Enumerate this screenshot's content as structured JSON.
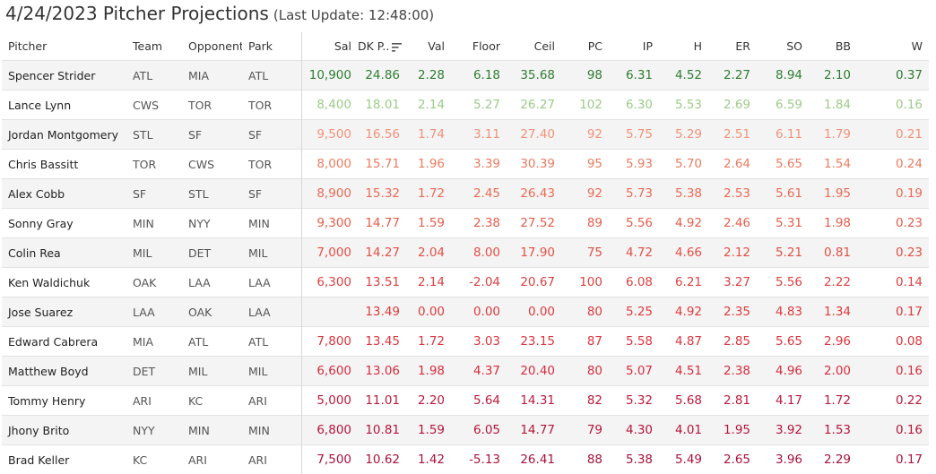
{
  "header": {
    "title": "4/24/2023 Pitcher Projections",
    "last_update": "(Last Update: 12:48:00)"
  },
  "columns": {
    "pitcher": "Pitcher",
    "team": "Team",
    "opponent": "Opponent",
    "park": "Park",
    "sal": "Sal",
    "dk": "DK P..",
    "val": "Val",
    "floor": "Floor",
    "ceil": "Ceil",
    "pc": "PC",
    "ip": "IP",
    "h": "H",
    "er": "ER",
    "so": "SO",
    "bb": "BB",
    "w": "W"
  },
  "icons": {
    "sort": "sort-descending-icon"
  },
  "colors": {
    "dark_green": "#2e7d32",
    "light_green": "#9ccb87",
    "salmon": "#ef8f72",
    "red": "#e0463a",
    "crimson": "#c8183c",
    "burgundy": "#a8123a"
  },
  "rows": [
    {
      "pitcher": "Spencer Strider",
      "team": "ATL",
      "opponent": "MIA",
      "park": "ATL",
      "sal": "10,900",
      "dk": "24.86",
      "val": "2.28",
      "floor": "6.18",
      "ceil": "35.68",
      "pc": "98",
      "ip": "6.31",
      "h": "4.52",
      "er": "2.27",
      "so": "8.94",
      "bb": "2.10",
      "w": "0.37",
      "color": "#2e7d32"
    },
    {
      "pitcher": "Lance Lynn",
      "team": "CWS",
      "opponent": "TOR",
      "park": "TOR",
      "sal": "8,400",
      "dk": "18.01",
      "val": "2.14",
      "floor": "5.27",
      "ceil": "26.27",
      "pc": "102",
      "ip": "6.30",
      "h": "5.53",
      "er": "2.69",
      "so": "6.59",
      "bb": "1.84",
      "w": "0.16",
      "color": "#9ccb87"
    },
    {
      "pitcher": "Jordan Montgomery",
      "team": "STL",
      "opponent": "SF",
      "park": "SF",
      "sal": "9,500",
      "dk": "16.56",
      "val": "1.74",
      "floor": "3.11",
      "ceil": "27.40",
      "pc": "92",
      "ip": "5.75",
      "h": "5.29",
      "er": "2.51",
      "so": "6.11",
      "bb": "1.79",
      "w": "0.21",
      "color": "#f0937a"
    },
    {
      "pitcher": "Chris Bassitt",
      "team": "TOR",
      "opponent": "CWS",
      "park": "TOR",
      "sal": "8,000",
      "dk": "15.71",
      "val": "1.96",
      "floor": "3.39",
      "ceil": "30.39",
      "pc": "95",
      "ip": "5.93",
      "h": "5.70",
      "er": "2.64",
      "so": "5.65",
      "bb": "1.54",
      "w": "0.24",
      "color": "#ec7a60"
    },
    {
      "pitcher": "Alex Cobb",
      "team": "SF",
      "opponent": "STL",
      "park": "SF",
      "sal": "8,900",
      "dk": "15.32",
      "val": "1.72",
      "floor": "2.45",
      "ceil": "26.43",
      "pc": "92",
      "ip": "5.73",
      "h": "5.38",
      "er": "2.53",
      "so": "5.61",
      "bb": "1.95",
      "w": "0.19",
      "color": "#e96b55"
    },
    {
      "pitcher": "Sonny Gray",
      "team": "MIN",
      "opponent": "NYY",
      "park": "MIN",
      "sal": "9,300",
      "dk": "14.77",
      "val": "1.59",
      "floor": "2.38",
      "ceil": "27.52",
      "pc": "89",
      "ip": "5.56",
      "h": "4.92",
      "er": "2.46",
      "so": "5.31",
      "bb": "1.98",
      "w": "0.23",
      "color": "#e55c4b"
    },
    {
      "pitcher": "Colin Rea",
      "team": "MIL",
      "opponent": "DET",
      "park": "MIL",
      "sal": "7,000",
      "dk": "14.27",
      "val": "2.04",
      "floor": "8.00",
      "ceil": "17.90",
      "pc": "75",
      "ip": "4.72",
      "h": "4.66",
      "er": "2.12",
      "so": "5.21",
      "bb": "0.81",
      "w": "0.23",
      "color": "#e25045"
    },
    {
      "pitcher": "Ken Waldichuk",
      "team": "OAK",
      "opponent": "LAA",
      "park": "LAA",
      "sal": "6,300",
      "dk": "13.51",
      "val": "2.14",
      "floor": "-2.04",
      "ceil": "20.67",
      "pc": "100",
      "ip": "6.08",
      "h": "6.21",
      "er": "3.27",
      "so": "5.56",
      "bb": "2.22",
      "w": "0.14",
      "color": "#de3f3f"
    },
    {
      "pitcher": "Jose Suarez",
      "team": "LAA",
      "opponent": "OAK",
      "park": "LAA",
      "sal": "",
      "dk": "13.49",
      "val": "0.00",
      "floor": "0.00",
      "ceil": "0.00",
      "pc": "80",
      "ip": "5.25",
      "h": "4.92",
      "er": "2.35",
      "so": "4.83",
      "bb": "1.34",
      "w": "0.17",
      "color": "#dc3b3d"
    },
    {
      "pitcher": "Edward Cabrera",
      "team": "MIA",
      "opponent": "ATL",
      "park": "ATL",
      "sal": "7,800",
      "dk": "13.45",
      "val": "1.72",
      "floor": "3.03",
      "ceil": "23.15",
      "pc": "87",
      "ip": "5.58",
      "h": "4.87",
      "er": "2.85",
      "so": "5.65",
      "bb": "2.96",
      "w": "0.08",
      "color": "#d9353d"
    },
    {
      "pitcher": "Matthew Boyd",
      "team": "DET",
      "opponent": "MIL",
      "park": "MIL",
      "sal": "6,600",
      "dk": "13.06",
      "val": "1.98",
      "floor": "4.37",
      "ceil": "20.40",
      "pc": "80",
      "ip": "5.07",
      "h": "4.51",
      "er": "2.38",
      "so": "4.96",
      "bb": "2.00",
      "w": "0.16",
      "color": "#d42d3e"
    },
    {
      "pitcher": "Tommy Henry",
      "team": "ARI",
      "opponent": "KC",
      "park": "ARI",
      "sal": "5,000",
      "dk": "11.01",
      "val": "2.20",
      "floor": "5.64",
      "ceil": "14.31",
      "pc": "82",
      "ip": "5.32",
      "h": "5.68",
      "er": "2.81",
      "so": "4.17",
      "bb": "1.72",
      "w": "0.22",
      "color": "#bc1a3c"
    },
    {
      "pitcher": "Jhony Brito",
      "team": "NYY",
      "opponent": "MIN",
      "park": "MIN",
      "sal": "6,800",
      "dk": "10.81",
      "val": "1.59",
      "floor": "6.05",
      "ceil": "14.77",
      "pc": "79",
      "ip": "4.30",
      "h": "4.01",
      "er": "1.95",
      "so": "3.92",
      "bb": "1.53",
      "w": "0.16",
      "color": "#b2163b"
    },
    {
      "pitcher": "Brad Keller",
      "team": "KC",
      "opponent": "ARI",
      "park": "ARI",
      "sal": "7,500",
      "dk": "10.62",
      "val": "1.42",
      "floor": "-5.13",
      "ceil": "26.41",
      "pc": "88",
      "ip": "5.38",
      "h": "5.49",
      "er": "2.65",
      "so": "3.96",
      "bb": "2.29",
      "w": "0.17",
      "color": "#a8123a"
    }
  ]
}
